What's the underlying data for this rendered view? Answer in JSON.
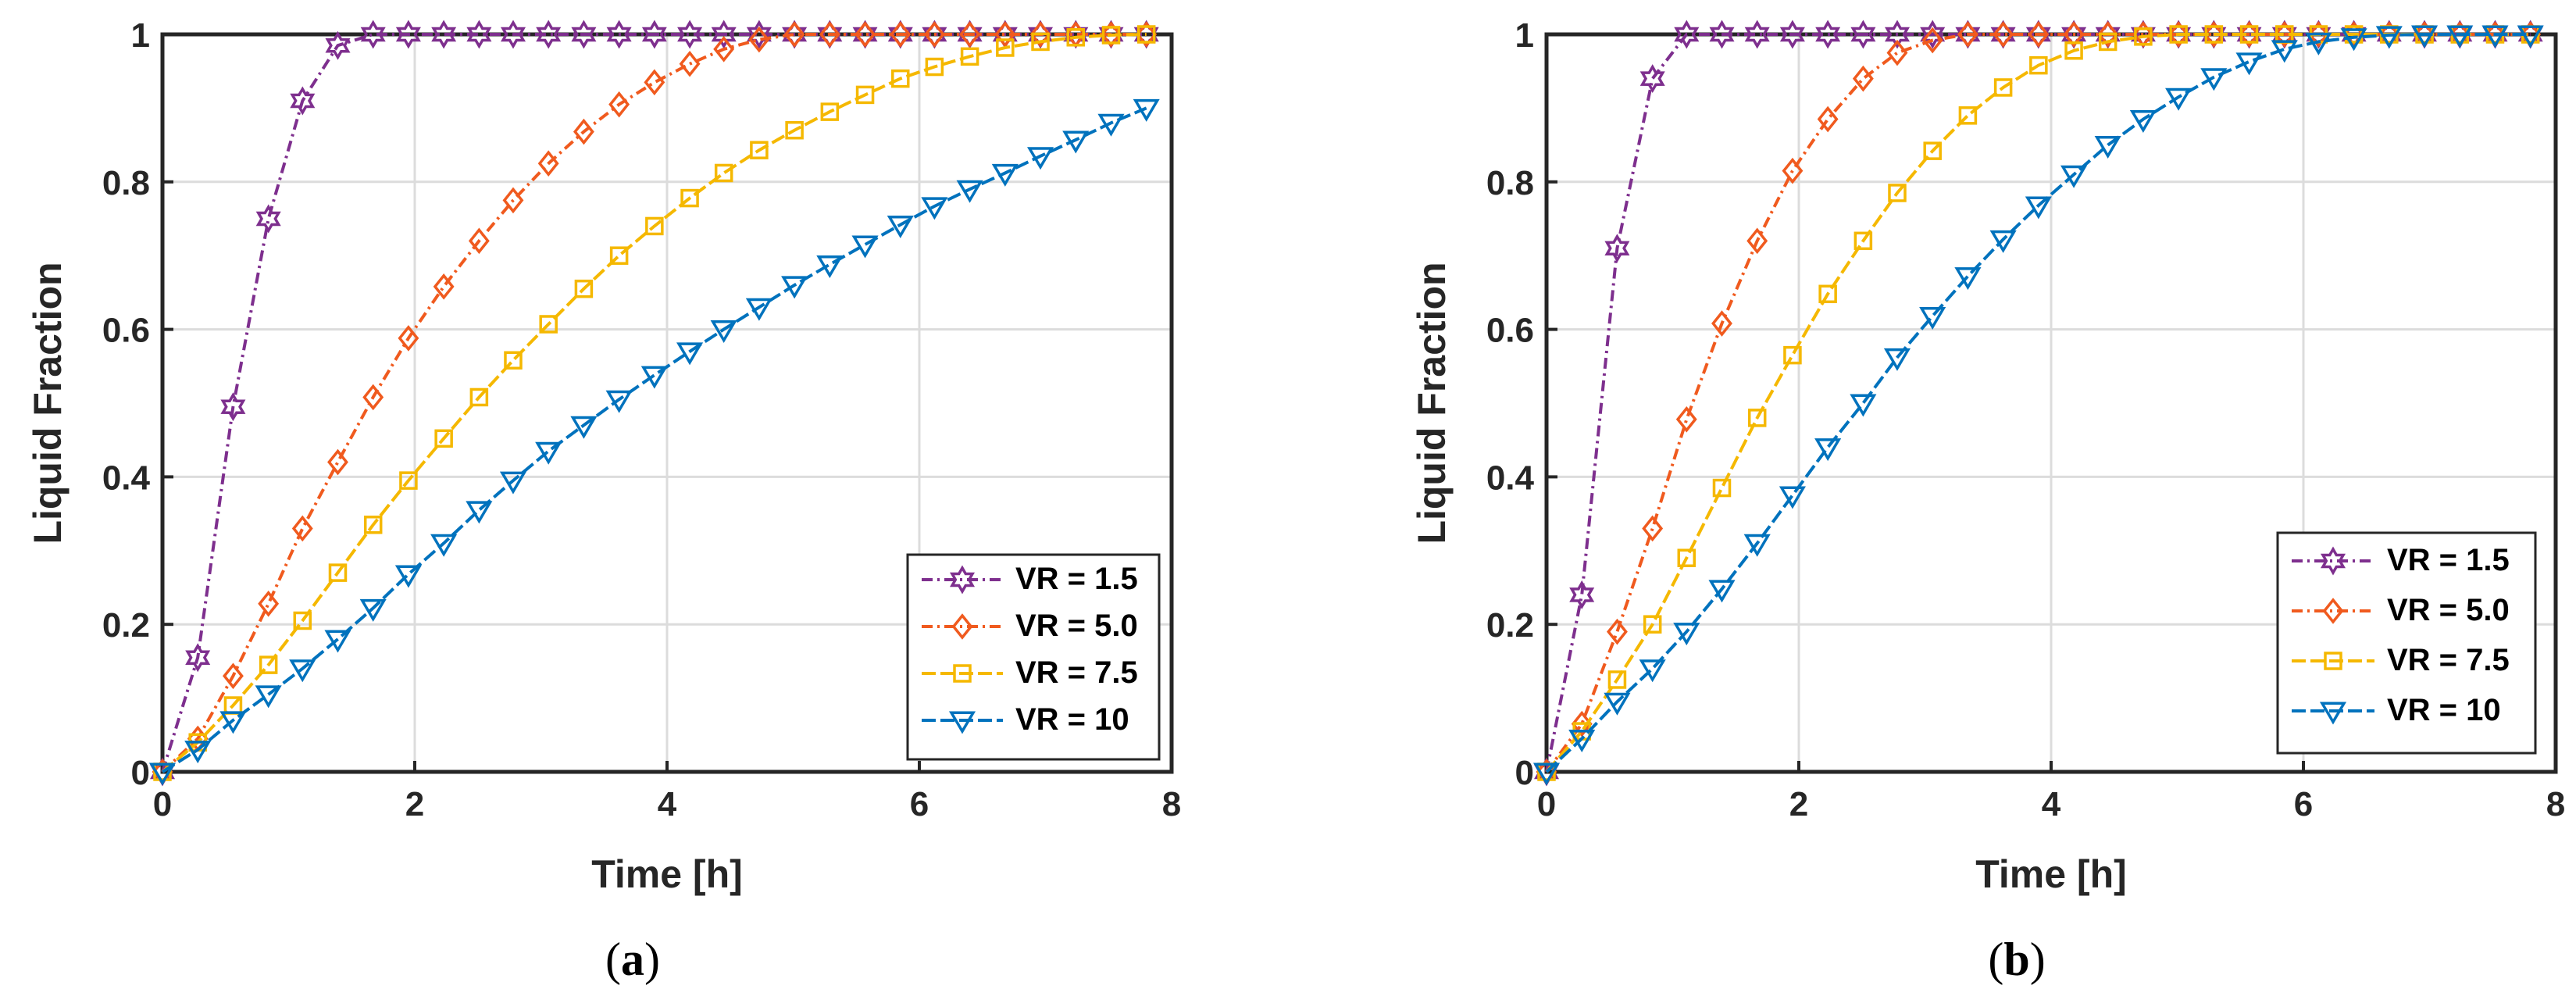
{
  "colors": {
    "vr15": "#7E2F8E",
    "vr50": "#F05A1E",
    "vr75": "#F5B800",
    "vr10": "#0072BD",
    "grid": "#dcdcdc",
    "axis": "#262626"
  },
  "chart_data": [
    {
      "type": "line",
      "caption_prefix": "(",
      "caption_letter": "a",
      "caption_suffix": ")",
      "title": "",
      "xlabel": "Time [h]",
      "ylabel": "Liquid Fraction",
      "xlim": [
        0,
        8
      ],
      "ylim": [
        0,
        1
      ],
      "xticks": [
        0,
        2,
        4,
        6,
        8
      ],
      "yticks": [
        0,
        0.2,
        0.4,
        0.6,
        0.8,
        1
      ],
      "ytick_labels": [
        "0",
        "0.2",
        "0.4",
        "0.6",
        "0.8",
        "1"
      ],
      "grid": true,
      "legend_position": "bottom-right",
      "x": [
        0,
        0.28,
        0.56,
        0.84,
        1.11,
        1.39,
        1.67,
        1.95,
        2.23,
        2.51,
        2.78,
        3.06,
        3.34,
        3.62,
        3.9,
        4.18,
        4.45,
        4.73,
        5.01,
        5.29,
        5.57,
        5.85,
        6.12,
        6.4,
        6.68,
        6.96,
        7.24,
        7.52,
        7.8
      ],
      "series": [
        {
          "name": "VR = 1.5",
          "color_key": "vr15",
          "marker": "hexagram",
          "dash": "14,6,3,6",
          "values": [
            0,
            0.155,
            0.495,
            0.75,
            0.91,
            0.985,
            1,
            1,
            1,
            1,
            1,
            1,
            1,
            1,
            1,
            1,
            1,
            1,
            1,
            1,
            1,
            1,
            1,
            1,
            1,
            1,
            1,
            1,
            1
          ]
        },
        {
          "name": "VR = 5.0",
          "color_key": "vr50",
          "marker": "diamond",
          "dash": "14,6,3,6",
          "values": [
            0,
            0.045,
            0.13,
            0.228,
            0.33,
            0.42,
            0.508,
            0.588,
            0.658,
            0.72,
            0.775,
            0.825,
            0.868,
            0.905,
            0.935,
            0.96,
            0.98,
            0.993,
            1,
            1,
            1,
            1,
            1,
            1,
            1,
            1,
            1,
            1,
            1
          ]
        },
        {
          "name": "VR = 7.5",
          "color_key": "vr75",
          "marker": "square",
          "dash": "18,6",
          "values": [
            0,
            0.04,
            0.09,
            0.145,
            0.205,
            0.27,
            0.335,
            0.395,
            0.452,
            0.508,
            0.558,
            0.607,
            0.655,
            0.7,
            0.74,
            0.778,
            0.812,
            0.843,
            0.87,
            0.895,
            0.918,
            0.94,
            0.956,
            0.97,
            0.982,
            0.99,
            0.996,
            0.999,
            1
          ]
        },
        {
          "name": "VR = 10",
          "color_key": "vr10",
          "marker": "triangle-down",
          "dash": "18,6",
          "values": [
            0,
            0.03,
            0.07,
            0.105,
            0.14,
            0.18,
            0.222,
            0.268,
            0.31,
            0.355,
            0.395,
            0.435,
            0.47,
            0.505,
            0.538,
            0.57,
            0.6,
            0.63,
            0.66,
            0.688,
            0.715,
            0.742,
            0.767,
            0.79,
            0.812,
            0.835,
            0.857,
            0.88,
            0.9
          ]
        }
      ]
    },
    {
      "type": "line",
      "caption_prefix": "(",
      "caption_letter": "b",
      "caption_suffix": ")",
      "title": "",
      "xlabel": "Time [h]",
      "ylabel": "Liquid Fraction",
      "xlim": [
        0,
        8
      ],
      "ylim": [
        0,
        1
      ],
      "xticks": [
        0,
        2,
        4,
        6,
        8
      ],
      "yticks": [
        0,
        0.2,
        0.4,
        0.6,
        0.8,
        1
      ],
      "ytick_labels": [
        "0",
        "0.2",
        "0.4",
        "0.6",
        "0.8",
        "1"
      ],
      "grid": true,
      "legend_position": "bottom-right",
      "x": [
        0,
        0.28,
        0.56,
        0.84,
        1.11,
        1.39,
        1.67,
        1.95,
        2.23,
        2.51,
        2.78,
        3.06,
        3.34,
        3.62,
        3.9,
        4.18,
        4.45,
        4.73,
        5.01,
        5.29,
        5.57,
        5.85,
        6.12,
        6.4,
        6.68,
        6.96,
        7.24,
        7.52,
        7.8
      ],
      "series": [
        {
          "name": "VR = 1.5",
          "color_key": "vr15",
          "marker": "hexagram",
          "dash": "14,6,3,6",
          "values": [
            0,
            0.24,
            0.71,
            0.94,
            1,
            1,
            1,
            1,
            1,
            1,
            1,
            1,
            1,
            1,
            1,
            1,
            1,
            1,
            1,
            1,
            1,
            1,
            1,
            1,
            1,
            1,
            1,
            1,
            1
          ]
        },
        {
          "name": "VR = 5.0",
          "color_key": "vr50",
          "marker": "diamond",
          "dash": "14,6,3,6",
          "values": [
            0,
            0.065,
            0.19,
            0.33,
            0.478,
            0.608,
            0.72,
            0.815,
            0.885,
            0.94,
            0.975,
            0.992,
            1,
            1,
            1,
            1,
            1,
            1,
            1,
            1,
            1,
            1,
            1,
            1,
            1,
            1,
            1,
            1,
            1
          ]
        },
        {
          "name": "VR = 7.5",
          "color_key": "vr75",
          "marker": "square",
          "dash": "18,6",
          "values": [
            0,
            0.055,
            0.125,
            0.2,
            0.29,
            0.385,
            0.48,
            0.565,
            0.648,
            0.72,
            0.785,
            0.842,
            0.89,
            0.928,
            0.958,
            0.978,
            0.99,
            0.997,
            1,
            1,
            1,
            1,
            1,
            1,
            1,
            1,
            1,
            1,
            1
          ]
        },
        {
          "name": "VR = 10",
          "color_key": "vr10",
          "marker": "triangle-down",
          "dash": "18,6",
          "values": [
            0,
            0.045,
            0.095,
            0.14,
            0.19,
            0.248,
            0.31,
            0.375,
            0.44,
            0.5,
            0.562,
            0.618,
            0.672,
            0.722,
            0.768,
            0.81,
            0.85,
            0.885,
            0.915,
            0.942,
            0.963,
            0.98,
            0.99,
            0.996,
            0.999,
            1,
            1,
            1,
            1
          ]
        }
      ]
    }
  ]
}
